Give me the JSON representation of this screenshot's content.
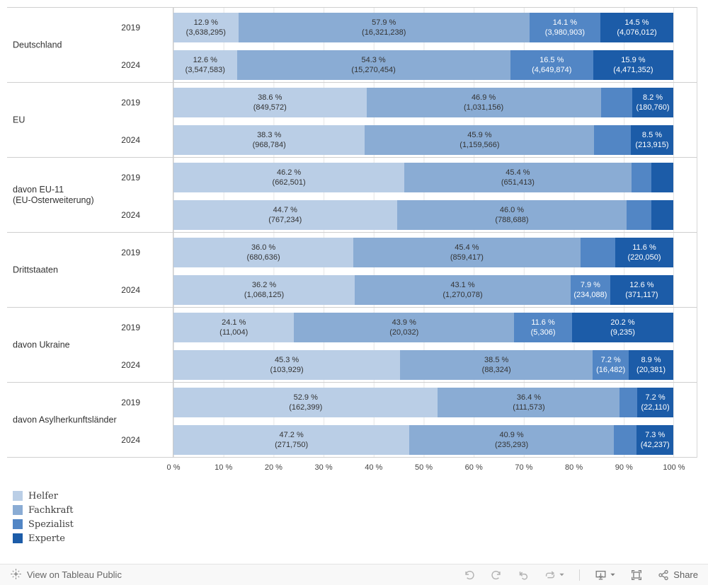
{
  "colors": {
    "series": [
      {
        "name": "Helfer",
        "color": "#bacee6",
        "text": "dark"
      },
      {
        "name": "Fachkraft",
        "color": "#8aacd4",
        "text": "dark"
      },
      {
        "name": "Spezialist",
        "color": "#5286c5",
        "text": "light"
      },
      {
        "name": "Experte",
        "color": "#1c5ca8",
        "text": "light"
      }
    ],
    "gridline": "#e6e6e6",
    "divider": "#cfcfcf"
  },
  "chart_data": {
    "type": "bar",
    "orientation": "horizontal",
    "stacked": true,
    "xlabel": "",
    "ylabel": "",
    "xlim": [
      0,
      100
    ],
    "grid": true,
    "legend_position": "bottom-left",
    "axis_ticks": [
      "0 %",
      "10 %",
      "20 %",
      "30 %",
      "40 %",
      "50 %",
      "60 %",
      "70 %",
      "80 %",
      "90 %",
      "100 %"
    ],
    "series_names": [
      "Helfer",
      "Fachkraft",
      "Spezialist",
      "Experte"
    ],
    "groups": [
      {
        "label_lines": [
          "Deutschland"
        ],
        "rows": [
          {
            "year": "2019",
            "segments": [
              {
                "series": "Helfer",
                "pct": 12.9,
                "pct_label": "12.9 %",
                "count_label": "(3,638,295)",
                "labeled": true
              },
              {
                "series": "Fachkraft",
                "pct": 57.9,
                "pct_label": "57.9 %",
                "count_label": "(16,321,238)",
                "labeled": true
              },
              {
                "series": "Spezialist",
                "pct": 14.1,
                "pct_label": "14.1 %",
                "count_label": "(3,980,903)",
                "labeled": true
              },
              {
                "series": "Experte",
                "pct": 14.5,
                "pct_label": "14.5 %",
                "count_label": "(4,076,012)",
                "labeled": true
              }
            ]
          },
          {
            "year": "2024",
            "segments": [
              {
                "series": "Helfer",
                "pct": 12.6,
                "pct_label": "12.6 %",
                "count_label": "(3,547,583)",
                "labeled": true
              },
              {
                "series": "Fachkraft",
                "pct": 54.3,
                "pct_label": "54.3 %",
                "count_label": "(15,270,454)",
                "labeled": true
              },
              {
                "series": "Spezialist",
                "pct": 16.5,
                "pct_label": "16.5 %",
                "count_label": "(4,649,874)",
                "labeled": true
              },
              {
                "series": "Experte",
                "pct": 15.9,
                "pct_label": "15.9 %",
                "count_label": "(4,471,352)",
                "labeled": true
              }
            ]
          }
        ]
      },
      {
        "label_lines": [
          "EU"
        ],
        "rows": [
          {
            "year": "2019",
            "segments": [
              {
                "series": "Helfer",
                "pct": 38.6,
                "pct_label": "38.6 %",
                "count_label": "(849,572)",
                "labeled": true
              },
              {
                "series": "Fachkraft",
                "pct": 46.9,
                "pct_label": "46.9 %",
                "count_label": "(1,031,156)",
                "labeled": true
              },
              {
                "series": "Spezialist",
                "pct": 6.3,
                "labeled": false
              },
              {
                "series": "Experte",
                "pct": 8.2,
                "pct_label": "8.2 %",
                "count_label": "(180,760)",
                "labeled": true
              }
            ]
          },
          {
            "year": "2024",
            "segments": [
              {
                "series": "Helfer",
                "pct": 38.3,
                "pct_label": "38.3 %",
                "count_label": "(968,784)",
                "labeled": true
              },
              {
                "series": "Fachkraft",
                "pct": 45.9,
                "pct_label": "45.9 %",
                "count_label": "(1,159,566)",
                "labeled": true
              },
              {
                "series": "Spezialist",
                "pct": 7.3,
                "labeled": false
              },
              {
                "series": "Experte",
                "pct": 8.5,
                "pct_label": "8.5 %",
                "count_label": "(213,915)",
                "labeled": true
              }
            ]
          }
        ]
      },
      {
        "label_lines": [
          "davon EU-11",
          "(EU-Osterweiterung)"
        ],
        "rows": [
          {
            "year": "2019",
            "segments": [
              {
                "series": "Helfer",
                "pct": 46.2,
                "pct_label": "46.2 %",
                "count_label": "(662,501)",
                "labeled": true
              },
              {
                "series": "Fachkraft",
                "pct": 45.4,
                "pct_label": "45.4 %",
                "count_label": "(651,413)",
                "labeled": true
              },
              {
                "series": "Spezialist",
                "pct": 4.0,
                "labeled": false
              },
              {
                "series": "Experte",
                "pct": 4.4,
                "labeled": false
              }
            ]
          },
          {
            "year": "2024",
            "segments": [
              {
                "series": "Helfer",
                "pct": 44.7,
                "pct_label": "44.7 %",
                "count_label": "(767,234)",
                "labeled": true
              },
              {
                "series": "Fachkraft",
                "pct": 46.0,
                "pct_label": "46.0 %",
                "count_label": "(788,688)",
                "labeled": true
              },
              {
                "series": "Spezialist",
                "pct": 4.9,
                "labeled": false
              },
              {
                "series": "Experte",
                "pct": 4.4,
                "labeled": false
              }
            ]
          }
        ]
      },
      {
        "label_lines": [
          "Drittstaaten"
        ],
        "rows": [
          {
            "year": "2019",
            "segments": [
              {
                "series": "Helfer",
                "pct": 36.0,
                "pct_label": "36.0 %",
                "count_label": "(680,636)",
                "labeled": true
              },
              {
                "series": "Fachkraft",
                "pct": 45.4,
                "pct_label": "45.4 %",
                "count_label": "(859,417)",
                "labeled": true
              },
              {
                "series": "Spezialist",
                "pct": 7.0,
                "labeled": false
              },
              {
                "series": "Experte",
                "pct": 11.6,
                "pct_label": "11.6 %",
                "count_label": "(220,050)",
                "labeled": true
              }
            ]
          },
          {
            "year": "2024",
            "segments": [
              {
                "series": "Helfer",
                "pct": 36.2,
                "pct_label": "36.2 %",
                "count_label": "(1,068,125)",
                "labeled": true
              },
              {
                "series": "Fachkraft",
                "pct": 43.1,
                "pct_label": "43.1 %",
                "count_label": "(1,270,078)",
                "labeled": true
              },
              {
                "series": "Spezialist",
                "pct": 7.9,
                "pct_label": "7.9 %",
                "count_label": "(234,088)",
                "labeled": true
              },
              {
                "series": "Experte",
                "pct": 12.6,
                "pct_label": "12.6 %",
                "count_label": "(371,117)",
                "labeled": true
              }
            ]
          }
        ]
      },
      {
        "label_lines": [
          "davon Ukraine"
        ],
        "rows": [
          {
            "year": "2019",
            "segments": [
              {
                "series": "Helfer",
                "pct": 24.1,
                "pct_label": "24.1 %",
                "count_label": "(11,004)",
                "labeled": true
              },
              {
                "series": "Fachkraft",
                "pct": 43.9,
                "pct_label": "43.9 %",
                "count_label": "(20,032)",
                "labeled": true
              },
              {
                "series": "Spezialist",
                "pct": 11.6,
                "pct_label": "11.6 %",
                "count_label": "(5,306)",
                "labeled": true
              },
              {
                "series": "Experte",
                "pct": 20.2,
                "pct_label": "20.2 %",
                "count_label": "(9,235)",
                "labeled": true
              }
            ]
          },
          {
            "year": "2024",
            "segments": [
              {
                "series": "Helfer",
                "pct": 45.3,
                "pct_label": "45.3 %",
                "count_label": "(103,929)",
                "labeled": true
              },
              {
                "series": "Fachkraft",
                "pct": 38.5,
                "pct_label": "38.5 %",
                "count_label": "(88,324)",
                "labeled": true
              },
              {
                "series": "Spezialist",
                "pct": 7.2,
                "pct_label": "7.2 %",
                "count_label": "(16,482)",
                "labeled": true
              },
              {
                "series": "Experte",
                "pct": 8.9,
                "pct_label": "8.9 %",
                "count_label": "(20,381)",
                "labeled": true
              }
            ]
          }
        ]
      },
      {
        "label_lines": [
          "davon Asylherkunftsländer"
        ],
        "rows": [
          {
            "year": "2019",
            "segments": [
              {
                "series": "Helfer",
                "pct": 52.9,
                "pct_label": "52.9 %",
                "count_label": "(162,399)",
                "labeled": true
              },
              {
                "series": "Fachkraft",
                "pct": 36.4,
                "pct_label": "36.4 %",
                "count_label": "(111,573)",
                "labeled": true
              },
              {
                "series": "Spezialist",
                "pct": 3.5,
                "labeled": false
              },
              {
                "series": "Experte",
                "pct": 7.2,
                "pct_label": "7.2 %",
                "count_label": "(22,110)",
                "labeled": true
              }
            ]
          },
          {
            "year": "2024",
            "segments": [
              {
                "series": "Helfer",
                "pct": 47.2,
                "pct_label": "47.2 %",
                "count_label": "(271,750)",
                "labeled": true
              },
              {
                "series": "Fachkraft",
                "pct": 40.9,
                "pct_label": "40.9 %",
                "count_label": "(235,293)",
                "labeled": true
              },
              {
                "series": "Spezialist",
                "pct": 4.6,
                "labeled": false
              },
              {
                "series": "Experte",
                "pct": 7.3,
                "pct_label": "7.3 %",
                "count_label": "(42,237)",
                "labeled": true
              }
            ]
          }
        ]
      }
    ]
  },
  "legend": {
    "items": [
      {
        "label": "Helfer"
      },
      {
        "label": "Fachkraft"
      },
      {
        "label": "Spezialist"
      },
      {
        "label": "Experte"
      }
    ]
  },
  "footer": {
    "view_label": "View on Tableau Public",
    "share_label": "Share"
  }
}
